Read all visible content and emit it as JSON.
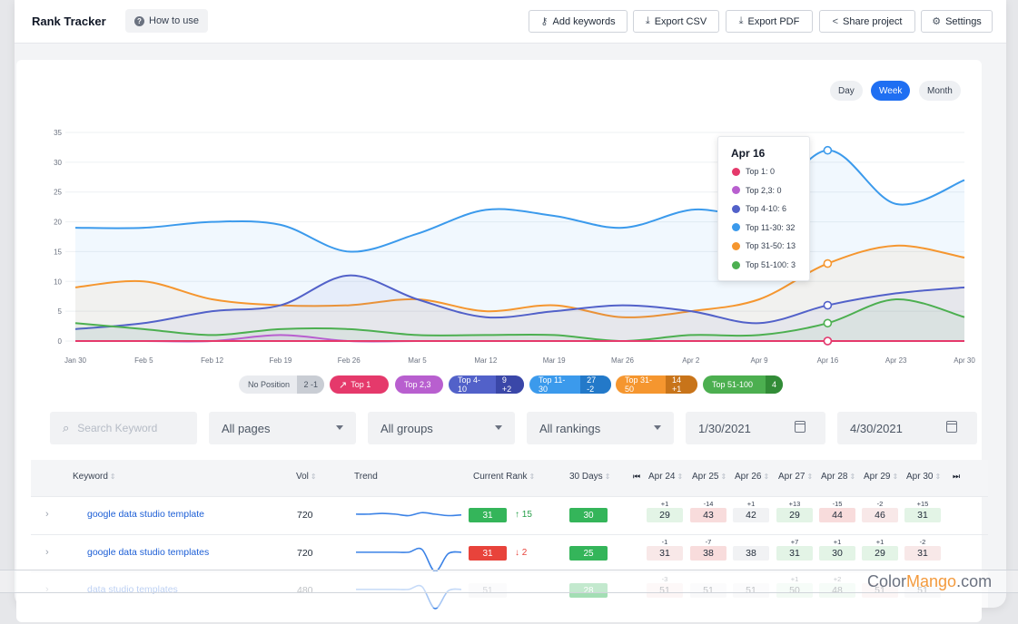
{
  "header": {
    "title": "Rank Tracker",
    "how_to_use": "How to use",
    "buttons": {
      "add_keywords": "Add keywords",
      "export_csv": "Export CSV",
      "export_pdf": "Export PDF",
      "share_project": "Share project",
      "settings": "Settings"
    }
  },
  "period": {
    "day": "Day",
    "week": "Week",
    "month": "Month",
    "selected": "Week"
  },
  "chart_data": {
    "type": "line",
    "x": [
      "Jan 30",
      "Feb 5",
      "Feb 12",
      "Feb 19",
      "Feb 26",
      "Mar 5",
      "Mar 12",
      "Mar 19",
      "Mar 26",
      "Apr 2",
      "Apr 9",
      "Apr 16",
      "Apr 23",
      "Apr 30"
    ],
    "ylim": [
      0,
      35
    ],
    "yticks": [
      0,
      5,
      10,
      15,
      20,
      25,
      30,
      35
    ],
    "grid": true,
    "series": [
      {
        "name": "Top 11-30",
        "color": "#3b9aec",
        "values": [
          19,
          19,
          20,
          19.5,
          15,
          18,
          22,
          21,
          19,
          22,
          22,
          32,
          23,
          27
        ]
      },
      {
        "name": "Top 31-50",
        "color": "#f5962f",
        "values": [
          9,
          10,
          7,
          6,
          6,
          7,
          5,
          6,
          4,
          5,
          7,
          13,
          16,
          14
        ]
      },
      {
        "name": "Top 4-10",
        "color": "#5261c9",
        "values": [
          2,
          3,
          5,
          6,
          11,
          7,
          4,
          5,
          6,
          5,
          3,
          6,
          8,
          9
        ]
      },
      {
        "name": "Top 51-100",
        "color": "#4caf50",
        "values": [
          3,
          2,
          1,
          2,
          2,
          1,
          1,
          1,
          0,
          1,
          1,
          3,
          7,
          4
        ]
      },
      {
        "name": "Top 2,3",
        "color": "#b85fcf",
        "values": [
          0,
          0,
          0,
          1,
          0,
          0,
          0,
          0,
          0,
          0,
          0,
          0,
          0,
          0
        ]
      },
      {
        "name": "Top 1",
        "color": "#e5396b",
        "values": [
          0,
          0,
          0,
          0,
          0,
          0,
          0,
          0,
          0,
          0,
          0,
          0,
          0,
          0
        ]
      }
    ],
    "tooltip": {
      "title": "Apr 16",
      "rows": [
        {
          "label": "Top 1: 0",
          "color": "#e5396b"
        },
        {
          "label": "Top 2,3: 0",
          "color": "#b85fcf"
        },
        {
          "label": "Top 4-10: 6",
          "color": "#5261c9"
        },
        {
          "label": "Top 11-30: 32",
          "color": "#3b9aec"
        },
        {
          "label": "Top 31-50: 13",
          "color": "#f5962f"
        },
        {
          "label": "Top 51-100: 3",
          "color": "#4caf50"
        }
      ]
    }
  },
  "legend": [
    {
      "label": "No Position",
      "count": "2",
      "change": "-1",
      "bg": "#e9ebef",
      "fg": "#4b5563",
      "cbg": "#c9cdd4"
    },
    {
      "label": "Top 1",
      "count": "",
      "change": "",
      "bg": "#e5396b",
      "fg": "#ffffff",
      "cbg": "#e5396b"
    },
    {
      "label": "Top 2,3",
      "count": "",
      "change": "",
      "bg": "#b85fcf",
      "fg": "#ffffff",
      "cbg": "#b85fcf"
    },
    {
      "label": "Top 4-10",
      "count": "9",
      "change": "+2",
      "bg": "#5261c9",
      "fg": "#ffffff",
      "cbg": "#3a47a8"
    },
    {
      "label": "Top 11-30",
      "count": "27",
      "change": "-2",
      "bg": "#3b9aec",
      "fg": "#ffffff",
      "cbg": "#2379c9"
    },
    {
      "label": "Top 31-50",
      "count": "14",
      "change": "+1",
      "bg": "#f5962f",
      "fg": "#ffffff",
      "cbg": "#c8741a"
    },
    {
      "label": "Top 51-100",
      "count": "4",
      "change": "",
      "bg": "#4caf50",
      "fg": "#ffffff",
      "cbg": "#328c37"
    }
  ],
  "filters": {
    "search_placeholder": "Search Keyword",
    "pages": "All pages",
    "groups": "All groups",
    "rankings": "All rankings",
    "date_from": "1/30/2021",
    "date_to": "4/30/2021"
  },
  "table": {
    "columns": {
      "keyword": "Keyword",
      "vol": "Vol",
      "trend": "Trend",
      "current_rank": "Current Rank",
      "days30": "30 Days"
    },
    "dates": [
      "Apr 24",
      "Apr 25",
      "Apr 26",
      "Apr 27",
      "Apr 28",
      "Apr 29",
      "Apr 30"
    ],
    "rows": [
      {
        "keyword": "google data studio template",
        "vol": "720",
        "rank": "31",
        "rank_color": "#34b55a",
        "delta": "15",
        "delta_dir": "up",
        "days30": "30",
        "days30_color": "#34b55a",
        "trend": [
          3,
          3,
          2.5,
          3,
          4,
          2,
          3,
          4,
          3.5
        ],
        "ranks": [
          "29",
          "43",
          "42",
          "29",
          "44",
          "46",
          "31"
        ],
        "changes": [
          "+1",
          "-14",
          "+1",
          "+13",
          "-15",
          "-2",
          "+15"
        ],
        "cell_colors": [
          "#e3f4e6",
          "#f8dcdc",
          "#f1f2f4",
          "#e3f4e6",
          "#f8dcdc",
          "#f8e8e8",
          "#e3f4e6"
        ]
      },
      {
        "keyword": "google data studio templates",
        "vol": "720",
        "rank": "31",
        "rank_color": "#e8433b",
        "delta": "2",
        "delta_dir": "down",
        "days30": "25",
        "days30_color": "#34b55a",
        "trend": [
          3,
          3,
          3,
          3,
          3,
          1,
          16,
          4,
          3
        ],
        "ranks": [
          "31",
          "38",
          "38",
          "31",
          "30",
          "29",
          "31"
        ],
        "changes": [
          "-1",
          "-7",
          "",
          "+7",
          "+1",
          "+1",
          "-2"
        ],
        "cell_colors": [
          "#f8e8e8",
          "#f8dcdc",
          "#f1f2f4",
          "#e3f4e6",
          "#e3f4e6",
          "#e3f4e6",
          "#f8e8e8"
        ]
      },
      {
        "keyword": "data studio templates",
        "vol": "480",
        "rank": "51",
        "rank_color": "#f1f2f4",
        "delta": "",
        "delta_dir": "",
        "days30": "28",
        "days30_color": "#34b55a",
        "trend": [
          3,
          3,
          3,
          3,
          3,
          1,
          16,
          4,
          3
        ],
        "ranks": [
          "51",
          "51",
          "51",
          "50",
          "48",
          "51",
          "51"
        ],
        "changes": [
          "-3",
          "",
          "",
          "+1",
          "+2",
          "",
          ""
        ],
        "cell_colors": [
          "#f8e8e8",
          "#f1f2f4",
          "#f1f2f4",
          "#e3f4e6",
          "#e3f4e6",
          "#f8e8e8",
          "#f1f2f4"
        ]
      }
    ]
  },
  "watermark": {
    "part1": "Color",
    "part2": "Mango",
    "part3": ".com"
  }
}
